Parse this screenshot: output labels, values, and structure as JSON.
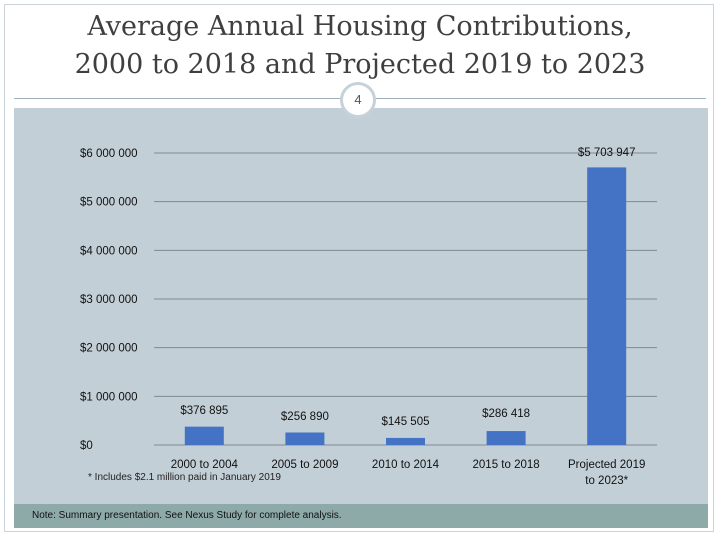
{
  "slide": {
    "title_line1": "Average Annual Housing Contributions,",
    "title_line2": "2000 to 2018 and Projected 2019 to 2023",
    "number": "4",
    "footnote": "* Includes $2.1 million paid in January 2019",
    "note": "Note: Summary presentation. See Nexus Study for complete analysis."
  },
  "colors": {
    "bar": "#4472c4",
    "plot_background": "#c3cfd7",
    "gridline": "#7f8a91",
    "note_bar": "#8da9a8"
  },
  "chart_data": {
    "type": "bar",
    "categories": [
      "2000 to 2004",
      "2005 to 2009",
      "2010 to 2014",
      "2015 to 2018",
      "Projected 2019 to 2023*"
    ],
    "values": [
      376895,
      256890,
      145505,
      286418,
      5703947
    ],
    "data_labels": [
      "$376 895",
      "$256 890",
      "$145 505",
      "$286 418",
      "$5 703 947"
    ],
    "y_ticks": [
      0,
      1000000,
      2000000,
      3000000,
      4000000,
      5000000,
      6000000
    ],
    "y_tick_labels": [
      "$0",
      "$1 000 000",
      "$2 000 000",
      "$3 000 000",
      "$4 000 000",
      "$5 000 000",
      "$6 000 000"
    ],
    "ylim": [
      0,
      6000000
    ],
    "grid": true,
    "legend": "none",
    "title": "",
    "xlabel": "",
    "ylabel": ""
  }
}
